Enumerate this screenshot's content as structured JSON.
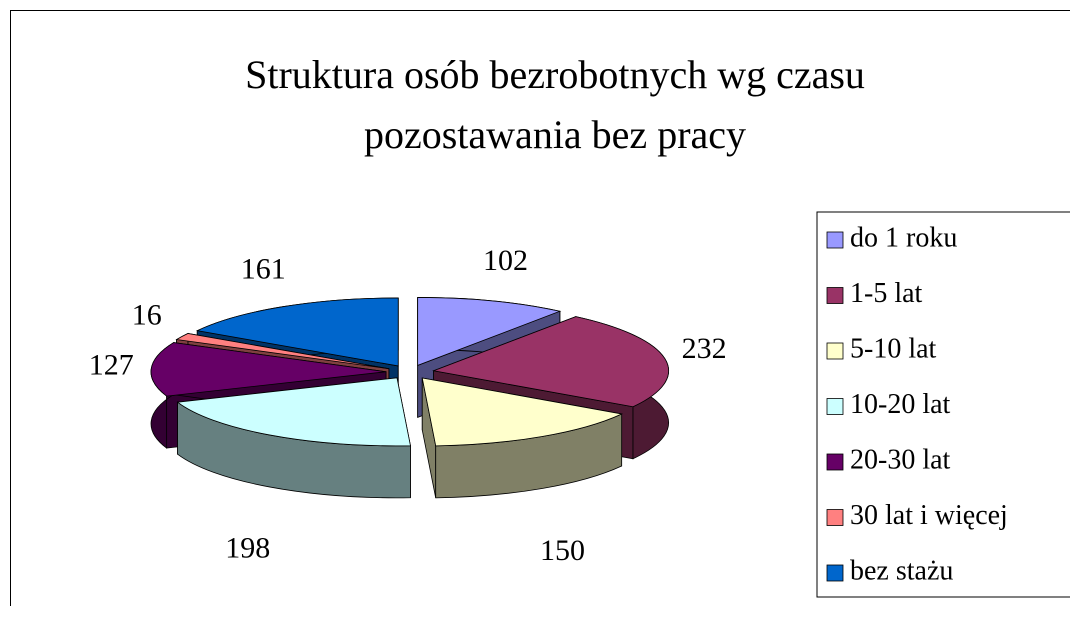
{
  "chart_data": {
    "type": "pie3d",
    "title": "Struktura osób bezrobotnych wg czasu pozostawania bez pracy",
    "categories": [
      "do 1 roku",
      "1-5 lat",
      "5-10 lat",
      "10-20 lat",
      "20-30 lat",
      "30 lat i więcej",
      "bez stażu"
    ],
    "values": [
      102,
      232,
      150,
      198,
      127,
      16,
      161
    ],
    "colors": [
      "#9999ff",
      "#993366",
      "#ffffcc",
      "#ccffff",
      "#660066",
      "#ff8080",
      "#0066cc"
    ],
    "legend": "right"
  }
}
